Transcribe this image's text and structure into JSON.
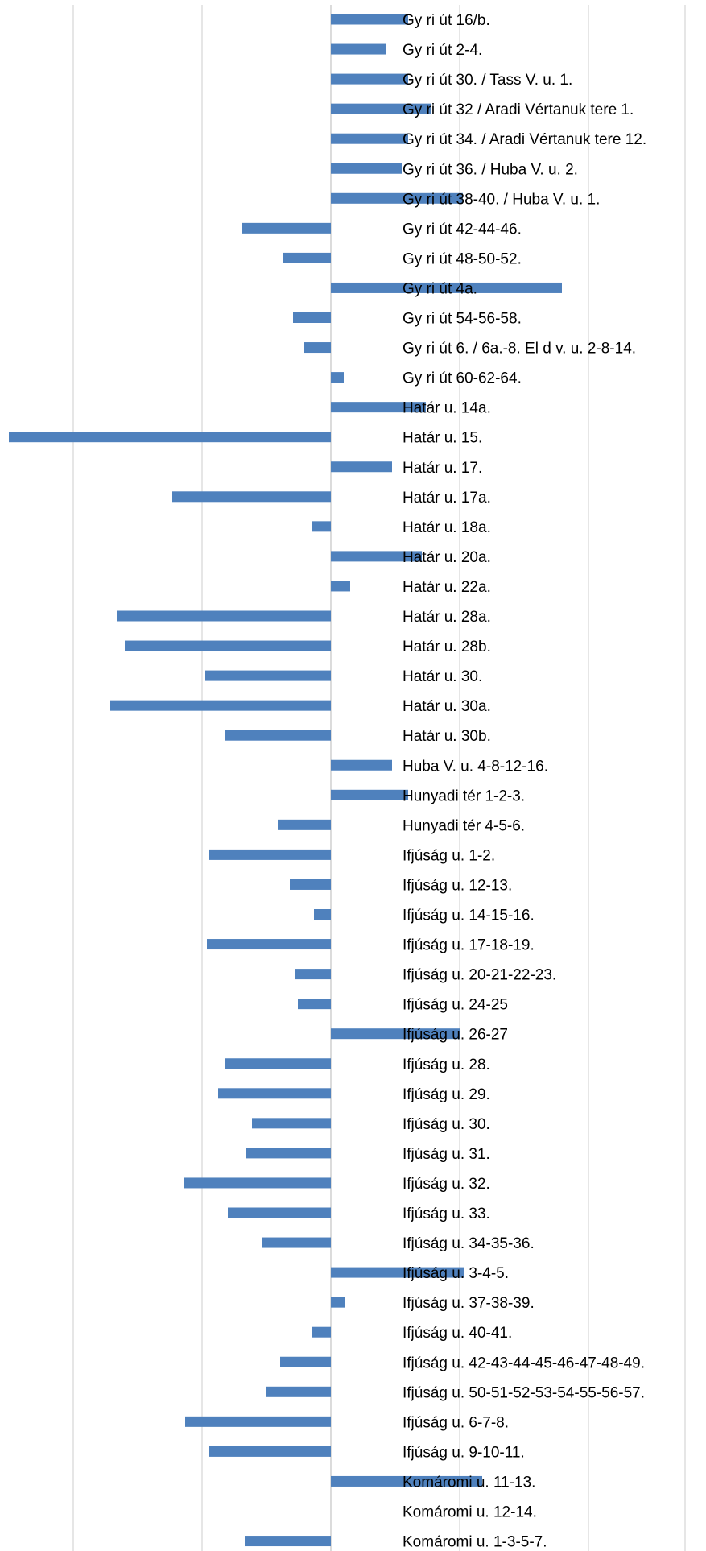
{
  "chart_data": {
    "type": "bar",
    "orientation": "horizontal",
    "grid": true,
    "legend": "none",
    "bar_color": "#4f81bd",
    "xlim": [
      -400,
      470
    ],
    "x_gridlines": [
      -320,
      -160,
      0,
      160,
      320,
      440
    ],
    "categories": [
      "Gy  ri út 16/b.",
      "Gy  ri út 2-4.",
      "Gy  ri út 30. / Tass V. u. 1.",
      "Gy  ri út 32 / Aradi Vértanuk tere 1.",
      "Gy  ri út 34. / Aradi Vértanuk tere 12.",
      "Gy  ri út 36. / Huba V. u. 2.",
      "Gy  ri út 38-40. / Huba V. u. 1.",
      "Gy  ri út 42-44-46.",
      "Gy  ri út 48-50-52.",
      "Gy  ri út 4a.",
      "Gy  ri út 54-56-58.",
      "Gy  ri út 6. / 6a.-8. El  d v. u. 2-8-14.",
      "Gy  ri út 60-62-64.",
      "Határ u. 14a.",
      "Határ u. 15.",
      "Határ u. 17.",
      "Határ u. 17a.",
      "Határ u. 18a.",
      "Határ u. 20a.",
      "Határ u. 22a.",
      "Határ u. 28a.",
      "Határ u. 28b.",
      "Határ u. 30.",
      "Határ u. 30a.",
      "Határ u. 30b.",
      "Huba V. u. 4-8-12-16.",
      "Hunyadi tér 1-2-3.",
      "Hunyadi tér 4-5-6.",
      "Ifjúság u. 1-2.",
      "Ifjúság u. 12-13.",
      "Ifjúság u. 14-15-16.",
      "Ifjúság u. 17-18-19.",
      "Ifjúság u. 20-21-22-23.",
      "Ifjúság u. 24-25",
      "Ifjúság u. 26-27",
      "Ifjúság u. 28.",
      "Ifjúság u. 29.",
      "Ifjúság u. 30.",
      "Ifjúság u. 31.",
      "Ifjúság u. 32.",
      "Ifjúság u. 33.",
      "Ifjúság u. 34-35-36.",
      "Ifjúság u. 3-4-5.",
      "Ifjúság u. 37-38-39.",
      "Ifjúság u. 40-41.",
      "Ifjúság u. 42-43-44-45-46-47-48-49.",
      "Ifjúság u. 50-51-52-53-54-55-56-57.",
      "Ifjúság u. 6-7-8.",
      "Ifjúság u. 9-10-11.",
      "Komáromi u. 11-13.",
      "Komáromi u. 12-14.",
      "Komáromi u. 1-3-5-7."
    ],
    "values": [
      96,
      68,
      96,
      125,
      96,
      88,
      164,
      -110,
      -60,
      287,
      -47,
      -33,
      16,
      118,
      -400,
      76,
      -197,
      -23,
      113,
      24,
      -266,
      -256,
      -156,
      -274,
      -131,
      76,
      96,
      -66,
      -151,
      -51,
      -21,
      -154,
      -45,
      -41,
      160,
      -131,
      -140,
      -98,
      -106,
      -182,
      -128,
      -85,
      166,
      18,
      -24,
      -63,
      -81,
      -181,
      -151,
      188,
      0,
      -107
    ]
  }
}
